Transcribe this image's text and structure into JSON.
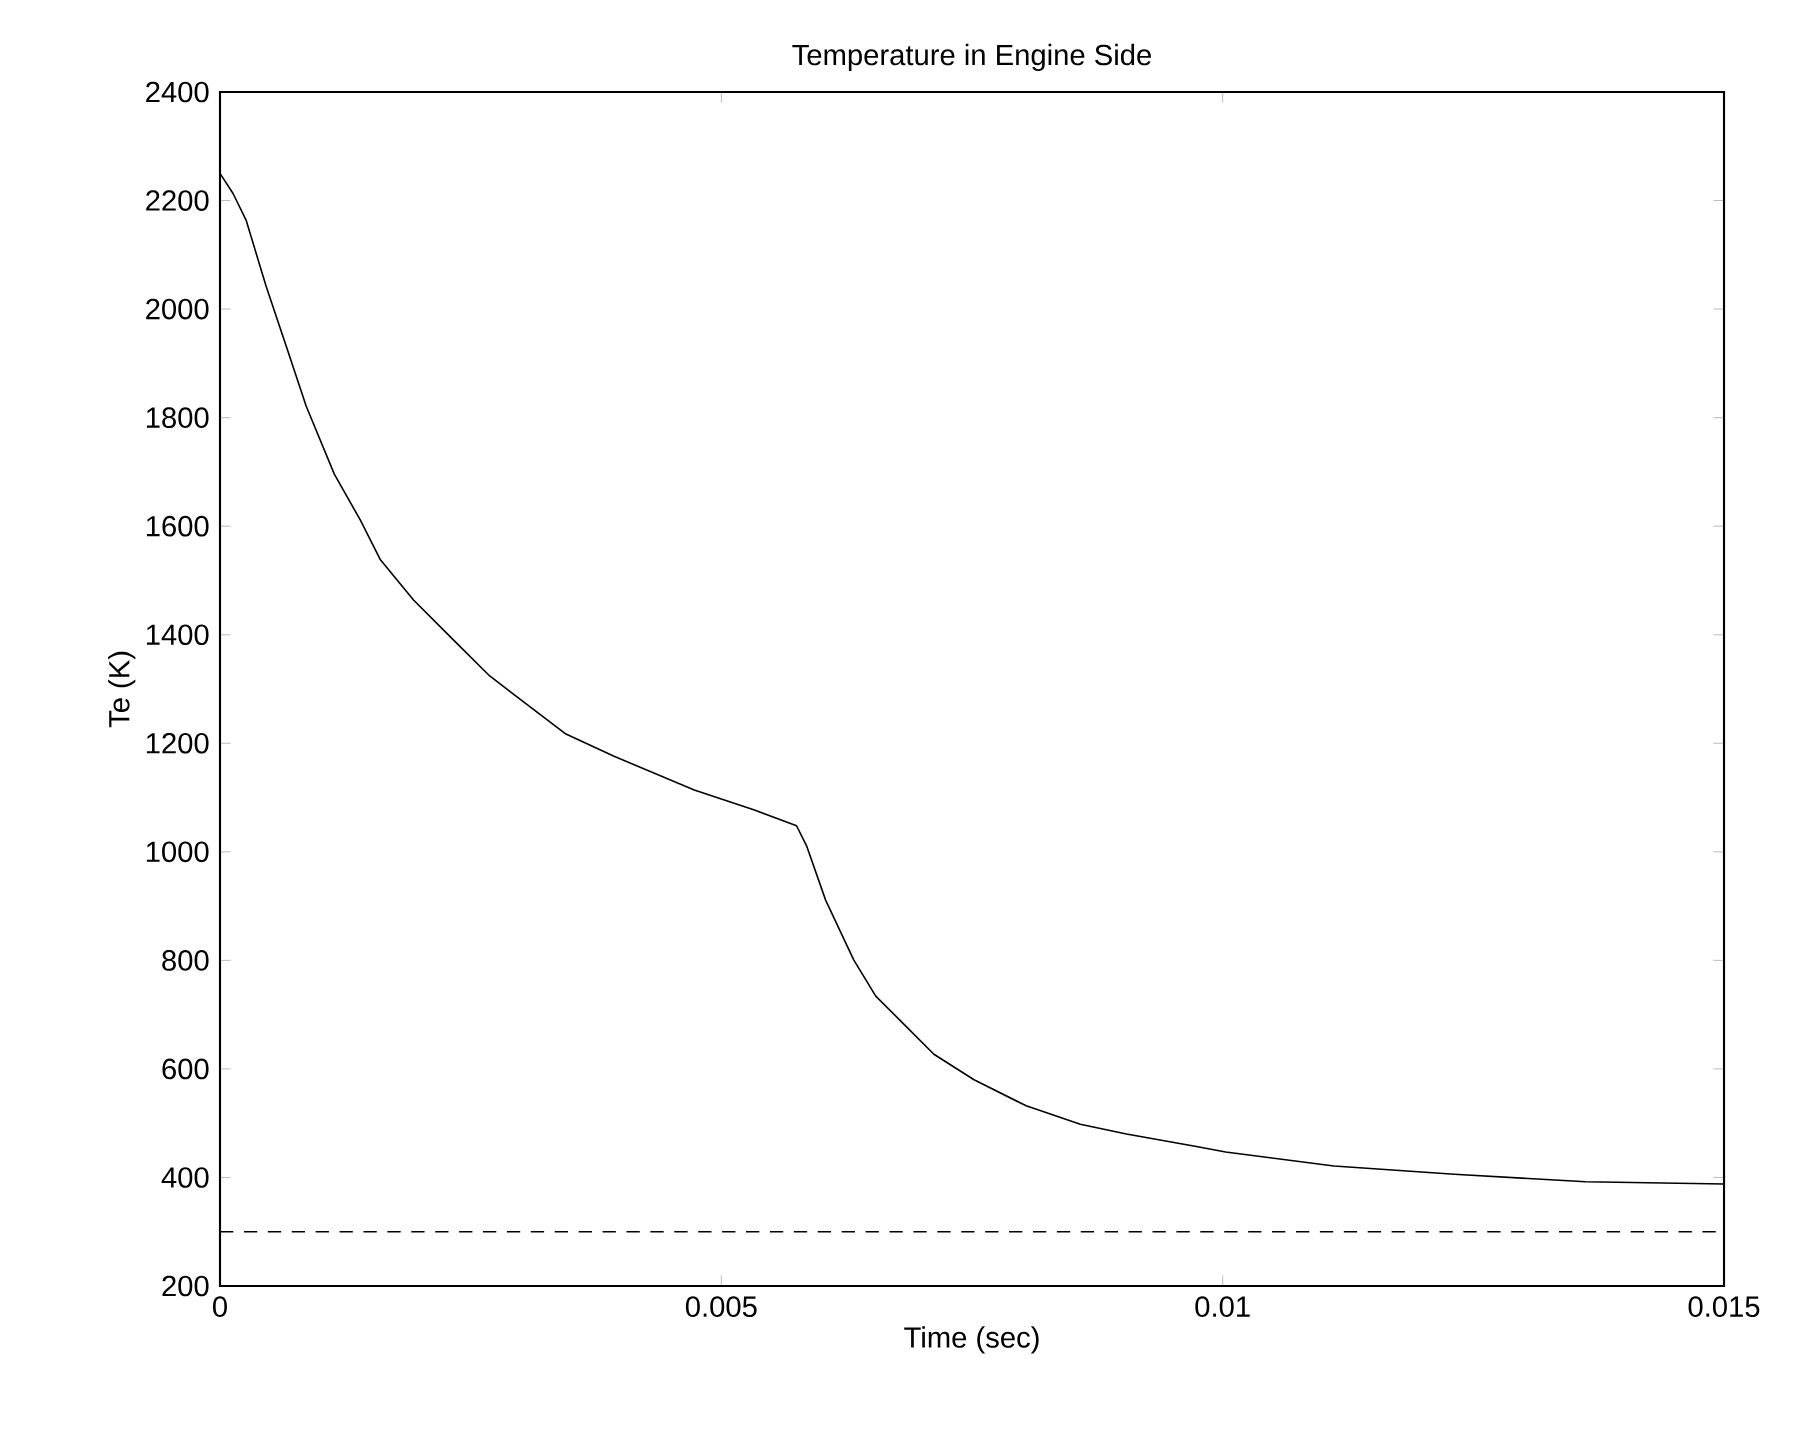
{
  "chart_data": {
    "type": "line",
    "title": "Temperature in Engine Side",
    "xlabel": "Time (sec)",
    "ylabel": "Te (K)",
    "xlim": [
      0,
      0.015
    ],
    "ylim": [
      200,
      2400
    ],
    "xticks": [
      0,
      0.005,
      0.01,
      0.015
    ],
    "yticks": [
      200,
      400,
      600,
      800,
      1000,
      1200,
      1400,
      1600,
      1800,
      2000,
      2200,
      2400
    ],
    "grid": false,
    "legend": false,
    "marker": "none",
    "line_style": "solid",
    "series": [
      {
        "color": "#000000",
        "x": [
          0,
          0.00013,
          0.00026,
          0.00046,
          0.00066,
          0.00086,
          0.00114,
          0.0014,
          0.0016,
          0.00193,
          0.00233,
          0.00269,
          0.00345,
          0.00393,
          0.00473,
          0.00533,
          0.00575,
          0.00585,
          0.00604,
          0.00632,
          0.00654,
          0.00678,
          0.00712,
          0.00752,
          0.00804,
          0.00858,
          0.00904,
          0.00971,
          0.01003,
          0.01111,
          0.01231,
          0.01362,
          0.015
        ],
        "values": [
          2250,
          2213,
          2164,
          2042,
          1932,
          1821,
          1696,
          1611,
          1538,
          1464,
          1390,
          1324,
          1217,
          1176,
          1114,
          1077,
          1048,
          1011,
          911,
          801,
          734,
          690,
          627,
          580,
          532,
          498,
          480,
          458,
          447,
          421,
          406,
          392,
          388
        ]
      }
    ],
    "ref_lines": [
      {
        "axis": "y",
        "value": 300,
        "color": "#000000",
        "line_style": "dashed"
      }
    ]
  }
}
